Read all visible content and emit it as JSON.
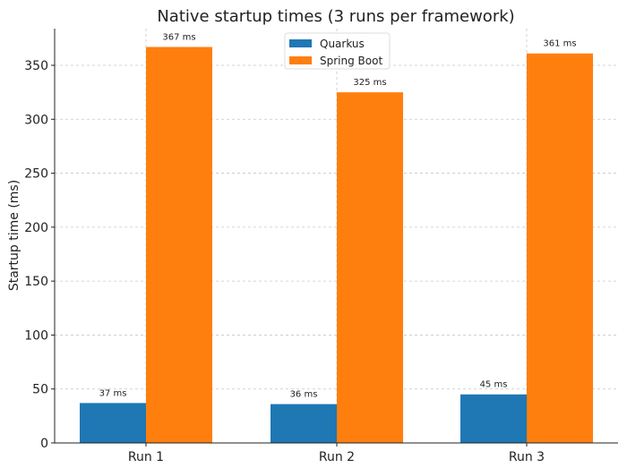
{
  "chart_data": {
    "type": "bar",
    "title": "Native startup times (3 runs per framework)",
    "xlabel": "",
    "ylabel": "Startup time (ms)",
    "categories": [
      "Run 1",
      "Run 2",
      "Run 3"
    ],
    "series": [
      {
        "name": "Quarkus",
        "values": [
          37,
          36,
          45
        ],
        "labels": [
          "37 ms",
          "36 ms",
          "45 ms"
        ],
        "color": "#1f77b4"
      },
      {
        "name": "Spring Boot",
        "values": [
          367,
          325,
          361
        ],
        "labels": [
          "367 ms",
          "325 ms",
          "361 ms"
        ],
        "color": "#ff7f0e"
      }
    ],
    "ylim": [
      0,
      384
    ],
    "yticks": [
      0,
      50,
      100,
      150,
      200,
      250,
      300,
      350
    ],
    "grid": true,
    "legend": "top-center"
  }
}
